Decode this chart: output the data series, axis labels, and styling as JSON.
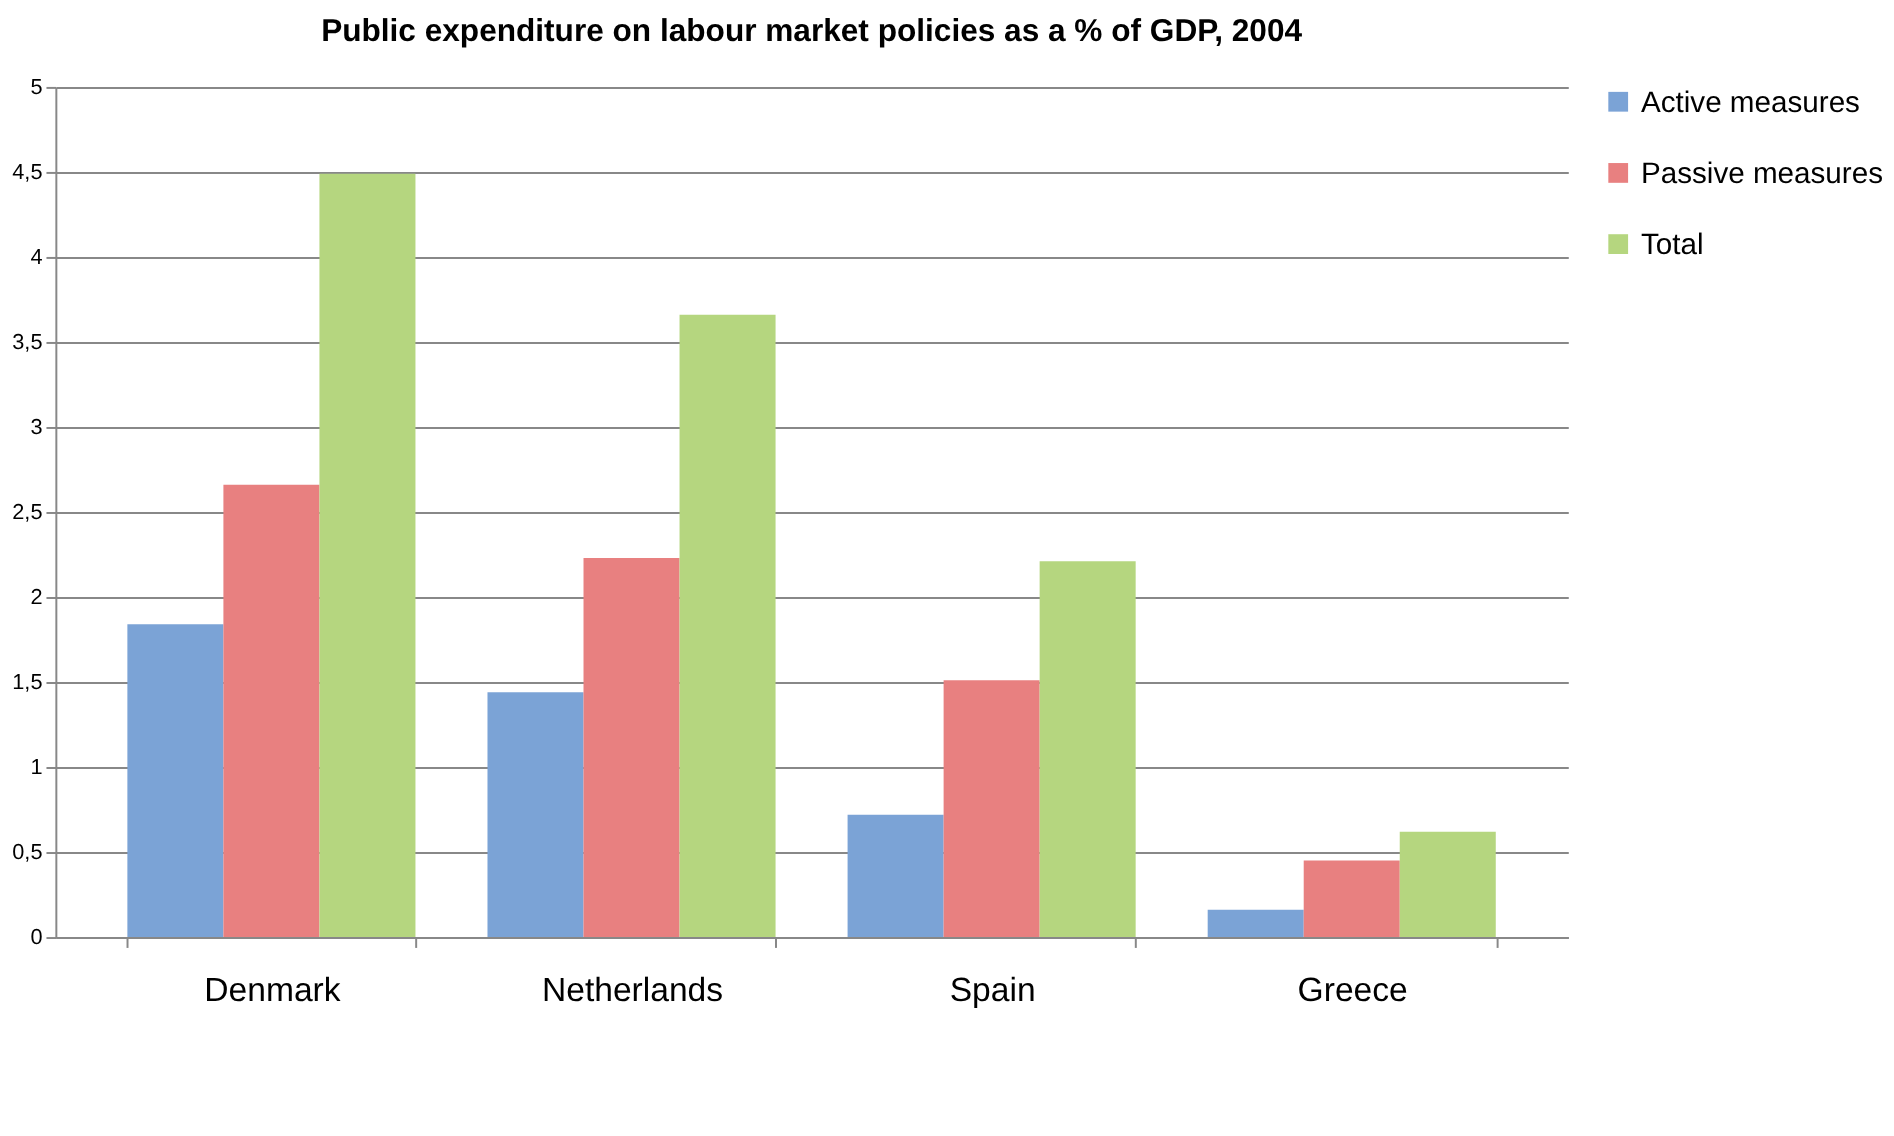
{
  "chart_data": {
    "type": "bar",
    "title": "Public expenditure on labour market policies as a % of GDP, 2004",
    "categories": [
      "Denmark",
      "Netherlands",
      "Spain",
      "Greece"
    ],
    "series": [
      {
        "name": "Active measures",
        "color": "#7ba3d6",
        "values": [
          1.84,
          1.44,
          0.72,
          0.16
        ]
      },
      {
        "name": "Passive measures",
        "color": "#e88080",
        "values": [
          2.66,
          2.23,
          1.51,
          0.45
        ]
      },
      {
        "name": "Total",
        "color": "#b5d67f",
        "values": [
          4.49,
          3.66,
          2.21,
          0.62
        ]
      }
    ],
    "ylim": [
      0,
      5
    ],
    "yticks": [
      0,
      {
        "value": 0.5,
        "label": "0,5"
      },
      1,
      {
        "value": 1.5,
        "label": "1,5"
      },
      2,
      {
        "value": 2.5,
        "label": "2,5"
      },
      3,
      {
        "value": 3.5,
        "label": "3,5"
      },
      4,
      {
        "value": 4.5,
        "label": "4,5"
      },
      5
    ],
    "grid": "y",
    "legend": "right"
  }
}
